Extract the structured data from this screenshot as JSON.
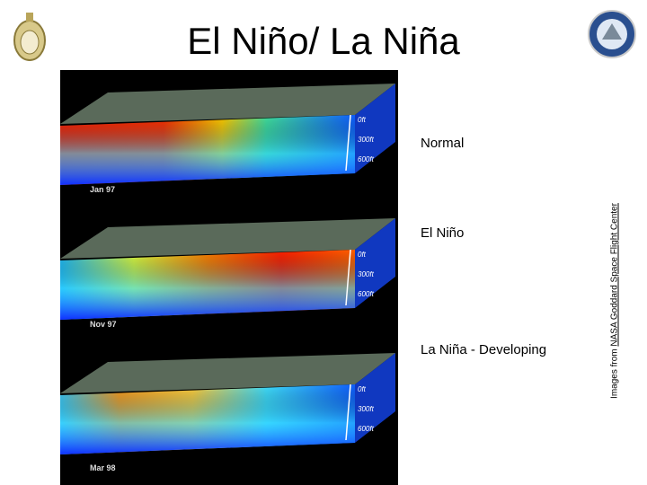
{
  "header": {
    "title": "El Niño/ La Niña"
  },
  "panels": [
    {
      "label": "Normal",
      "date": "Jan 97"
    },
    {
      "label": "El Niño",
      "date": "Nov 97"
    },
    {
      "label": "La Niña - Developing",
      "date": "Mar 98"
    }
  ],
  "depth_labels": [
    "0ft",
    "300ft",
    "600ft"
  ],
  "credit": {
    "prefix": "Images from",
    "link": "NASA Goddard Space Flight Center"
  }
}
